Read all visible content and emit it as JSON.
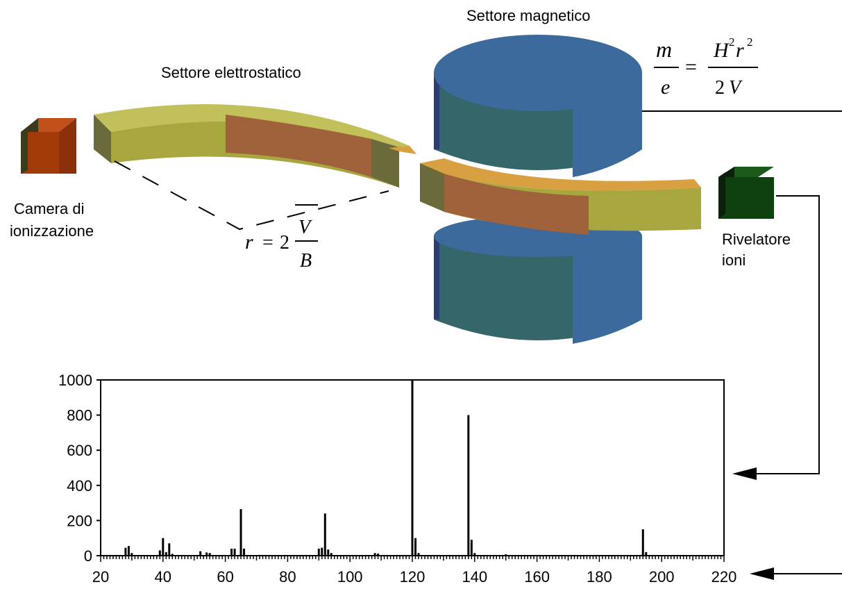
{
  "labels": {
    "magnetic_sector": "Settore magnetico",
    "electrostatic_sector": "Settore elettrostatico",
    "ionization_chamber_line1": "Camera di",
    "ionization_chamber_line2": "ionizzazione",
    "ion_detector_line1": "Rivelatore",
    "ion_detector_line2": "ioni"
  },
  "formulas": {
    "mass_charge": {
      "num_left": "m",
      "den_left": "e",
      "equals": "=",
      "num_right_a": "H",
      "num_right_sup1": "2",
      "num_right_b": "r",
      "num_right_sup2": "2",
      "den_right_a": "2",
      "den_right_b": "V"
    },
    "radius": {
      "lhs": "r",
      "equals": "=",
      "coef": "2",
      "num": "V",
      "den": "B"
    }
  },
  "colors": {
    "chamber": "#a33a0a",
    "chamber_side": "#3a3a1c",
    "sector_band": "#a8a63e",
    "sector_mid": "#a0623a",
    "magnet_top": "#3d6a9c",
    "magnet_side": "#34666a",
    "detector": "#0e4010"
  },
  "chart_data": {
    "type": "bar",
    "xlim": [
      20,
      220
    ],
    "ylim": [
      0,
      1000
    ],
    "xticks": [
      20,
      40,
      60,
      80,
      100,
      120,
      140,
      160,
      180,
      200,
      220
    ],
    "yticks": [
      0,
      200,
      400,
      600,
      800,
      1000
    ],
    "peaks": [
      {
        "x": 28,
        "y": 45
      },
      {
        "x": 29,
        "y": 55
      },
      {
        "x": 30,
        "y": 15
      },
      {
        "x": 39,
        "y": 30
      },
      {
        "x": 40,
        "y": 100
      },
      {
        "x": 41,
        "y": 20
      },
      {
        "x": 42,
        "y": 70
      },
      {
        "x": 43,
        "y": 10
      },
      {
        "x": 52,
        "y": 25
      },
      {
        "x": 54,
        "y": 18
      },
      {
        "x": 55,
        "y": 15
      },
      {
        "x": 62,
        "y": 40
      },
      {
        "x": 63,
        "y": 40
      },
      {
        "x": 65,
        "y": 265
      },
      {
        "x": 66,
        "y": 40
      },
      {
        "x": 90,
        "y": 40
      },
      {
        "x": 91,
        "y": 45
      },
      {
        "x": 92,
        "y": 240
      },
      {
        "x": 93,
        "y": 35
      },
      {
        "x": 94,
        "y": 15
      },
      {
        "x": 108,
        "y": 15
      },
      {
        "x": 109,
        "y": 12
      },
      {
        "x": 120,
        "y": 1000
      },
      {
        "x": 121,
        "y": 100
      },
      {
        "x": 122,
        "y": 15
      },
      {
        "x": 138,
        "y": 800
      },
      {
        "x": 139,
        "y": 90
      },
      {
        "x": 140,
        "y": 15
      },
      {
        "x": 150,
        "y": 8
      },
      {
        "x": 194,
        "y": 150
      },
      {
        "x": 195,
        "y": 20
      }
    ]
  }
}
